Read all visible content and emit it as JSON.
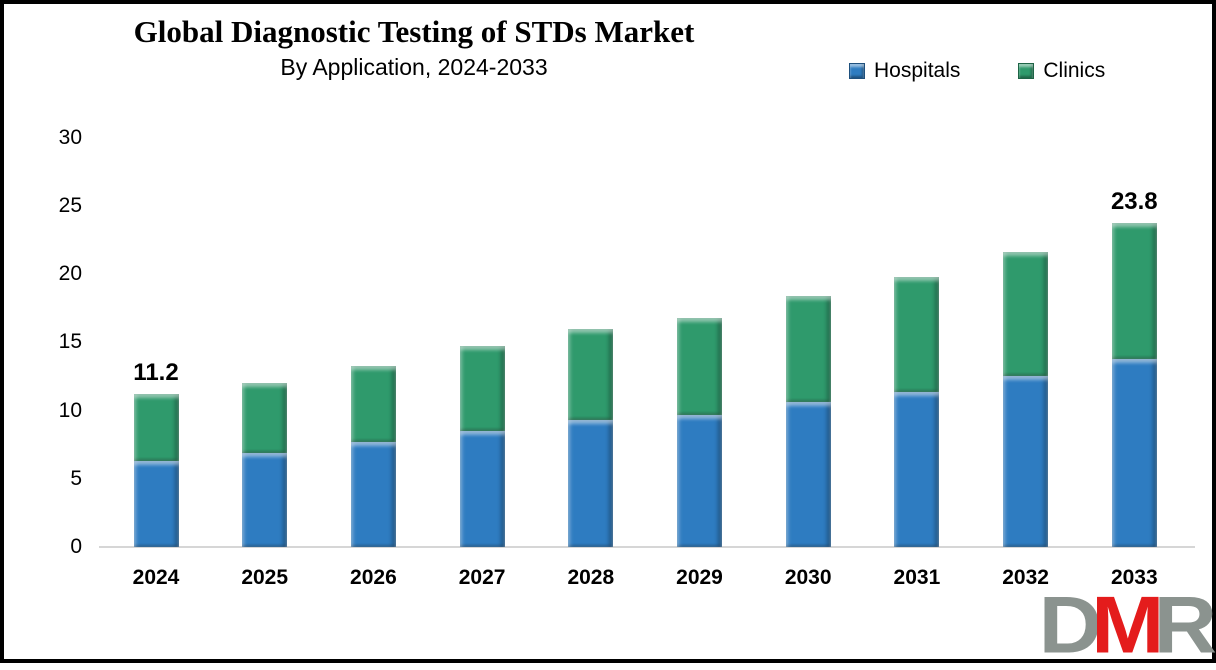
{
  "title": "Global Diagnostic Testing of STDs Market",
  "subtitle": "By Application, 2024-2033",
  "legend": [
    {
      "label": "Hospitals",
      "color": "#2e7cc1"
    },
    {
      "label": "Clinics",
      "color": "#2f9a6c"
    }
  ],
  "chart_data": {
    "type": "bar",
    "stacked": true,
    "title": "Global Diagnostic Testing of STDs Market",
    "subtitle": "By Application, 2024-2033",
    "categories": [
      "2024",
      "2025",
      "2026",
      "2027",
      "2028",
      "2029",
      "2030",
      "2031",
      "2032",
      "2033"
    ],
    "series": [
      {
        "name": "Hospitals",
        "color": "#2e7cc1",
        "values": [
          6.3,
          6.9,
          7.7,
          8.5,
          9.3,
          9.7,
          10.6,
          11.4,
          12.5,
          13.8
        ]
      },
      {
        "name": "Clinics",
        "color": "#2f9a6c",
        "values": [
          4.9,
          5.1,
          5.6,
          6.2,
          6.7,
          7.1,
          7.8,
          8.4,
          9.1,
          10.0
        ]
      }
    ],
    "totals": [
      11.2,
      12.0,
      13.3,
      14.7,
      16.0,
      16.8,
      18.4,
      19.8,
      21.6,
      23.8
    ],
    "bar_labels": [
      "11.2",
      "",
      "",
      "",
      "",
      "",
      "",
      "",
      "",
      "23.8"
    ],
    "xlabel": "",
    "ylabel": "",
    "ylim": [
      0,
      30
    ],
    "yticks": [
      0,
      5,
      10,
      15,
      20,
      25,
      30
    ],
    "grid": false,
    "legend_position": "top-right"
  },
  "colors": {
    "hospitals": "#2e7cc1",
    "clinics": "#2f9a6c",
    "axis_line": "#d6d6d6",
    "frame_border": "#000000",
    "logo_gray": "#8b938f",
    "logo_red": "#e41c1c"
  },
  "logo": {
    "letters": [
      {
        "char": "D",
        "color": "#8b938f"
      },
      {
        "char": "M",
        "color": "#e41c1c"
      },
      {
        "char": "R",
        "color": "#8b938f"
      }
    ]
  }
}
